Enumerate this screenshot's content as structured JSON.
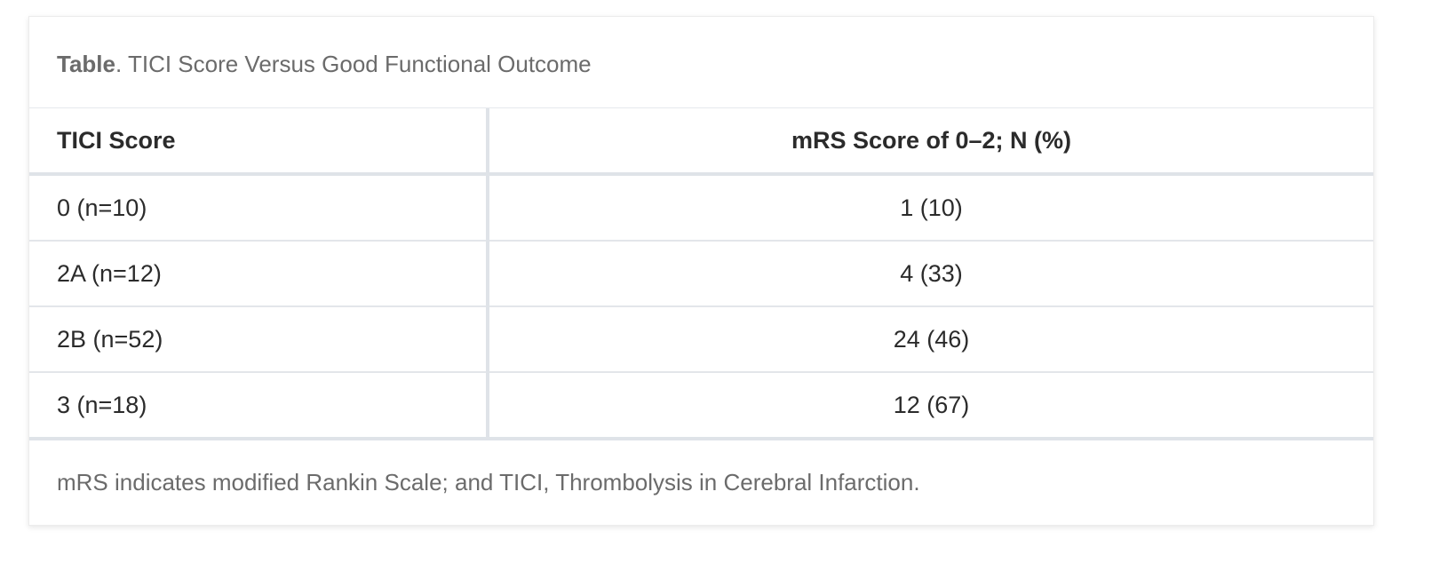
{
  "caption": {
    "label": "Table",
    "text": ". TICI Score Versus Good Functional Outcome"
  },
  "table": {
    "headers": [
      "TICI Score",
      "mRS Score of 0–2; N (%)"
    ],
    "rows": [
      [
        "0 (n=10)",
        "1 (10)"
      ],
      [
        "2A (n=12)",
        "4 (33)"
      ],
      [
        "2B (n=52)",
        "24 (46)"
      ],
      [
        "3 (n=18)",
        "12 (67)"
      ]
    ]
  },
  "footnote": "mRS indicates modified Rankin Scale; and TICI, Thrombolysis in Cerebral Infarction.",
  "colors": {
    "text": "#2b2b2b",
    "muted_text": "#6b6b6b",
    "border": "#dfe3e8"
  }
}
